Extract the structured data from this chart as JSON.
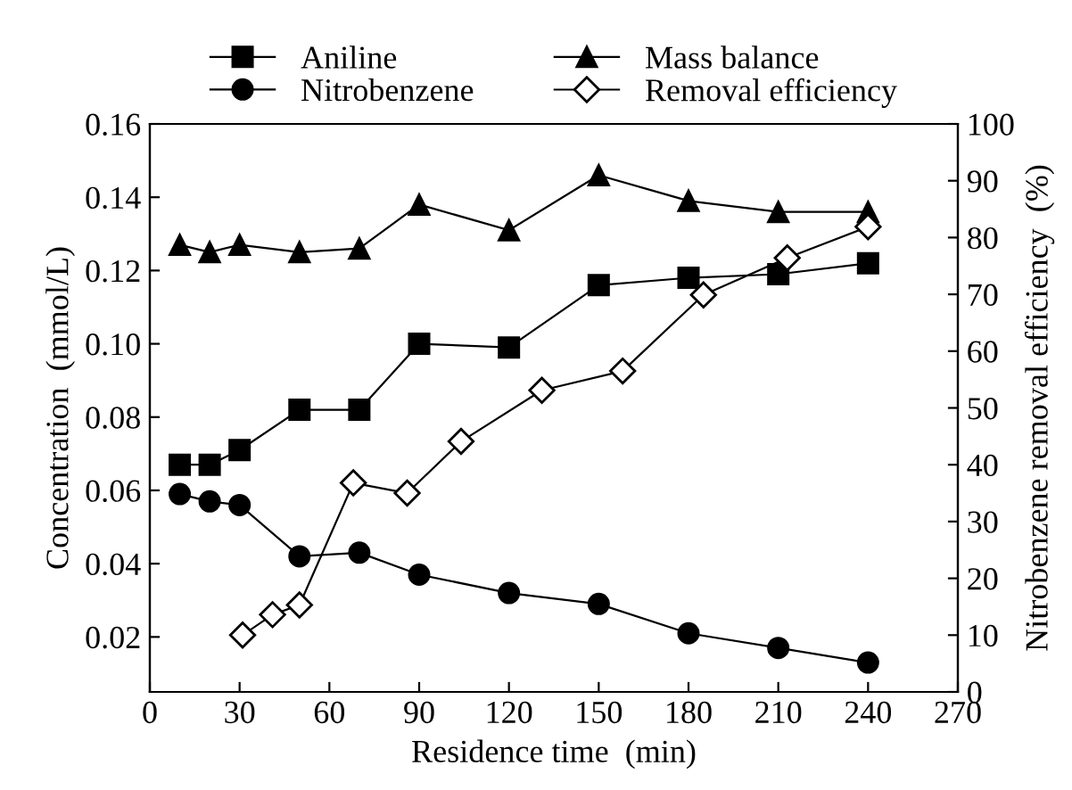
{
  "chart_data": {
    "type": "line",
    "xlabel": "Residence time  (min)",
    "ylabel": "Concentration  (mmol/L)",
    "y2label": "Nitrobenzene removal efficiency  (%)",
    "xlim": [
      0,
      270
    ],
    "xticks": [
      0,
      30,
      60,
      90,
      120,
      150,
      180,
      210,
      240,
      270
    ],
    "ylim": [
      0.005,
      0.16
    ],
    "yticks": [
      0.02,
      0.04,
      0.06,
      0.08,
      {
        "value": 0.1,
        "label": "0.10"
      },
      0.12,
      0.14,
      0.16
    ],
    "y2lim": [
      0,
      100
    ],
    "y2ticks": [
      0,
      10,
      20,
      30,
      40,
      50,
      60,
      70,
      80,
      90,
      100
    ],
    "legend": "top",
    "grid": false,
    "line_style": "solid",
    "series": [
      {
        "name": "Aniline",
        "color": "#000000",
        "marker": "square",
        "x": [
          10,
          20,
          30,
          50,
          70,
          90,
          120,
          150,
          180,
          210,
          240
        ],
        "values": [
          0.067,
          0.067,
          0.071,
          0.082,
          0.082,
          0.1,
          0.099,
          0.116,
          0.118,
          0.119,
          0.122
        ]
      },
      {
        "name": "Nitrobenzene",
        "color": "#000000",
        "marker": "circle",
        "x": [
          10,
          20,
          30,
          50,
          70,
          90,
          120,
          150,
          180,
          210,
          240
        ],
        "values": [
          0.059,
          0.057,
          0.056,
          0.042,
          0.043,
          0.037,
          0.032,
          0.029,
          0.021,
          0.017,
          0.013
        ]
      },
      {
        "name": "Mass balance",
        "color": "#000000",
        "marker": "triangle",
        "x": [
          10,
          20,
          30,
          50,
          70,
          90,
          120,
          150,
          180,
          210,
          240
        ],
        "values": [
          0.127,
          0.125,
          0.127,
          0.125,
          0.126,
          0.138,
          0.131,
          0.146,
          0.139,
          0.136,
          0.136
        ]
      },
      {
        "name": "Removal efficiency",
        "color": "#000000",
        "marker": "diamond",
        "axis": "y2",
        "x": [
          31,
          41,
          50,
          68,
          86,
          104,
          131,
          158,
          185,
          213,
          240
        ],
        "values": [
          10.0,
          13.6,
          15.3,
          36.8,
          35.0,
          44.1,
          53.1,
          56.5,
          69.9,
          76.4,
          81.9
        ]
      }
    ]
  }
}
